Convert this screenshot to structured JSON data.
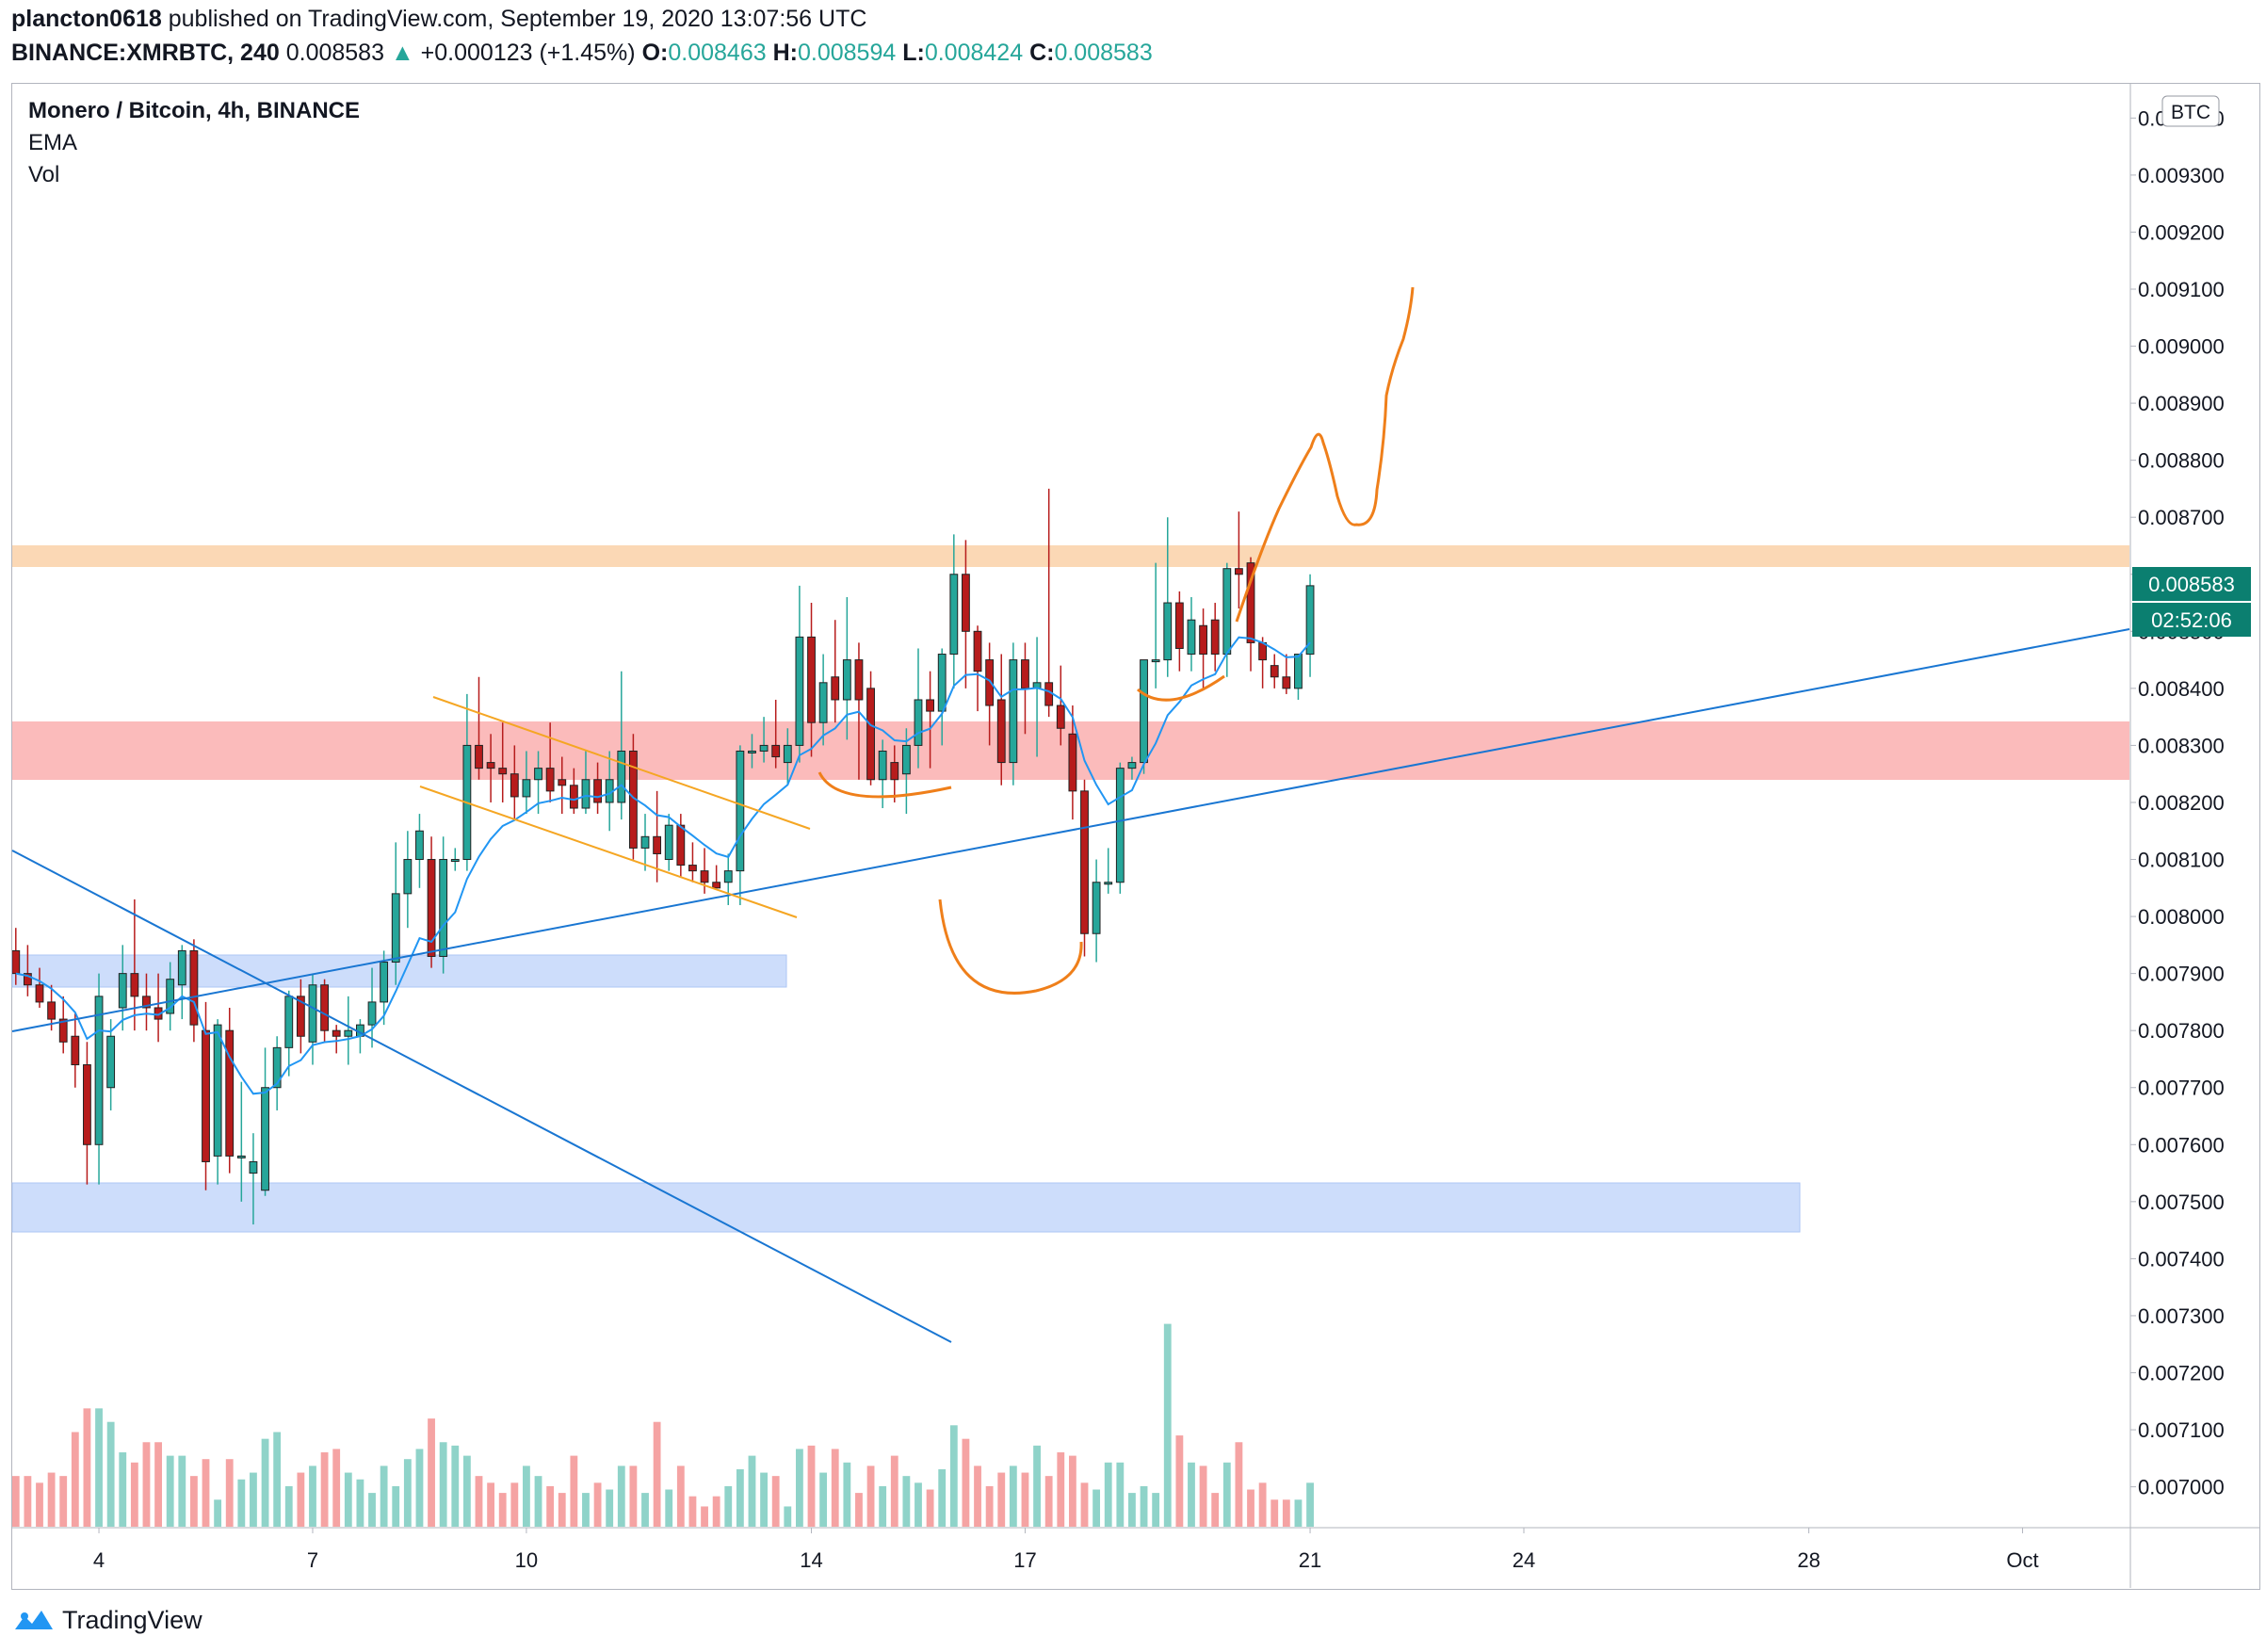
{
  "header": {
    "author": "plancton0618",
    "published": "published on TradingView.com, September 19, 2020 13:07:56 UTC",
    "symbol": "BINANCE:XMRBTC, 240",
    "last": "0.008583",
    "arrow": "▲",
    "change": "+0.000123 (+1.45%)",
    "o_label": "O:",
    "o": "0.008463",
    "h_label": "H:",
    "h": "0.008594",
    "l_label": "L:",
    "l": "0.008424",
    "c_label": "C:",
    "c": "0.008583"
  },
  "legend": {
    "title": "Monero / Bitcoin, 4h, BINANCE",
    "ema": "EMA",
    "vol": "Vol"
  },
  "currency_badge": "BTC",
  "price_badge": "0.008583",
  "countdown_badge": "02:52:06",
  "footer": {
    "brand": "TradingView"
  },
  "colors": {
    "up": "#26a69a",
    "down": "#b71c1c",
    "ema": "#2196f3",
    "trend": "#1976d2",
    "drawing": "#ef7f1a",
    "resistance": "#f9cb9c",
    "supply": "#fbb4b4",
    "support": "#c5d8fb"
  },
  "chart_data": {
    "type": "candlestick",
    "title": "Monero / Bitcoin, 4h, BINANCE",
    "y_axis": {
      "min": 0.00693,
      "max": 0.00946,
      "ticks": [
        "0.007000",
        "0.007100",
        "0.007200",
        "0.007300",
        "0.007400",
        "0.007500",
        "0.007600",
        "0.007700",
        "0.007800",
        "0.007900",
        "0.008000",
        "0.008100",
        "0.008200",
        "0.008300",
        "0.008400",
        "0.008500",
        "0.008600",
        "0.008700",
        "0.008800",
        "0.008900",
        "0.009000",
        "0.009100",
        "0.009200",
        "0.009300",
        "0.009400"
      ]
    },
    "x_axis": {
      "ticks": [
        {
          "label": "4",
          "index": 7
        },
        {
          "label": "7",
          "index": 25
        },
        {
          "label": "10",
          "index": 43
        },
        {
          "label": "14",
          "index": 67
        },
        {
          "label": "17",
          "index": 85
        },
        {
          "label": "21",
          "index": 109
        },
        {
          "label": "24",
          "index": 127
        },
        {
          "label": "28",
          "index": 151
        },
        {
          "label": "Oct",
          "index": 169
        }
      ],
      "domain": [
        -0.3,
        178
      ]
    },
    "candles": [
      [
        0.00794,
        0.00798,
        0.00788,
        0.0079
      ],
      [
        0.0079,
        0.00795,
        0.00786,
        0.00788
      ],
      [
        0.00788,
        0.00791,
        0.00784,
        0.00785
      ],
      [
        0.00785,
        0.00788,
        0.0078,
        0.00782
      ],
      [
        0.00782,
        0.00786,
        0.00776,
        0.00778
      ],
      [
        0.00779,
        0.00783,
        0.0077,
        0.00774
      ],
      [
        0.00774,
        0.00778,
        0.00753,
        0.0076
      ],
      [
        0.0076,
        0.0079,
        0.00753,
        0.00786
      ],
      [
        0.0077,
        0.00782,
        0.00766,
        0.00779
      ],
      [
        0.00784,
        0.00795,
        0.0078,
        0.0079
      ],
      [
        0.0079,
        0.00803,
        0.0078,
        0.00786
      ],
      [
        0.00786,
        0.0079,
        0.0078,
        0.00784
      ],
      [
        0.00784,
        0.0079,
        0.00778,
        0.00782
      ],
      [
        0.00783,
        0.00792,
        0.0078,
        0.00789
      ],
      [
        0.00788,
        0.00795,
        0.00782,
        0.00794
      ],
      [
        0.00794,
        0.00796,
        0.00778,
        0.00781
      ],
      [
        0.0078,
        0.00785,
        0.00752,
        0.00757
      ],
      [
        0.00758,
        0.00782,
        0.00753,
        0.00781
      ],
      [
        0.0078,
        0.00784,
        0.00755,
        0.00758
      ],
      [
        0.00758,
        0.00771,
        0.0075,
        0.00758
      ],
      [
        0.00755,
        0.00762,
        0.00746,
        0.00757
      ],
      [
        0.00752,
        0.00777,
        0.00751,
        0.0077
      ],
      [
        0.0077,
        0.00779,
        0.00766,
        0.00777
      ],
      [
        0.00777,
        0.00787,
        0.00772,
        0.00786
      ],
      [
        0.00786,
        0.00789,
        0.00776,
        0.00779
      ],
      [
        0.00778,
        0.0079,
        0.00774,
        0.00788
      ],
      [
        0.00788,
        0.00789,
        0.00778,
        0.0078
      ],
      [
        0.0078,
        0.00781,
        0.00776,
        0.00779
      ],
      [
        0.00779,
        0.00786,
        0.00774,
        0.0078
      ],
      [
        0.00779,
        0.00782,
        0.00776,
        0.00781
      ],
      [
        0.00781,
        0.00791,
        0.00777,
        0.00785
      ],
      [
        0.00785,
        0.00794,
        0.00781,
        0.00792
      ],
      [
        0.00792,
        0.00813,
        0.00788,
        0.00804
      ],
      [
        0.00804,
        0.00815,
        0.00798,
        0.0081
      ],
      [
        0.0081,
        0.00818,
        0.00805,
        0.00815
      ],
      [
        0.0081,
        0.00814,
        0.00791,
        0.00793
      ],
      [
        0.00793,
        0.00814,
        0.0079,
        0.0081
      ],
      [
        0.0081,
        0.00812,
        0.00808,
        0.0081
      ],
      [
        0.0081,
        0.00839,
        0.00808,
        0.0083
      ],
      [
        0.0083,
        0.00842,
        0.00824,
        0.00826
      ],
      [
        0.00827,
        0.00832,
        0.0082,
        0.00826
      ],
      [
        0.00826,
        0.00834,
        0.0082,
        0.00825
      ],
      [
        0.00825,
        0.0083,
        0.00817,
        0.00821
      ],
      [
        0.00821,
        0.00829,
        0.00818,
        0.00824
      ],
      [
        0.00824,
        0.00829,
        0.00818,
        0.00826
      ],
      [
        0.00826,
        0.00834,
        0.0082,
        0.00822
      ],
      [
        0.00824,
        0.00828,
        0.00818,
        0.00823
      ],
      [
        0.00823,
        0.00826,
        0.00818,
        0.00819
      ],
      [
        0.00819,
        0.00829,
        0.00818,
        0.00824
      ],
      [
        0.00824,
        0.00827,
        0.00818,
        0.0082
      ],
      [
        0.0082,
        0.00829,
        0.00815,
        0.00824
      ],
      [
        0.0082,
        0.00843,
        0.00817,
        0.00829
      ],
      [
        0.00829,
        0.00832,
        0.0081,
        0.00812
      ],
      [
        0.00812,
        0.00818,
        0.00808,
        0.00814
      ],
      [
        0.00814,
        0.00822,
        0.00806,
        0.00811
      ],
      [
        0.0081,
        0.00818,
        0.00808,
        0.00816
      ],
      [
        0.00816,
        0.00818,
        0.00807,
        0.00809
      ],
      [
        0.00809,
        0.00813,
        0.00806,
        0.00808
      ],
      [
        0.00808,
        0.00812,
        0.00804,
        0.00806
      ],
      [
        0.00806,
        0.00809,
        0.00805,
        0.00805
      ],
      [
        0.00806,
        0.00811,
        0.00802,
        0.00808
      ],
      [
        0.00808,
        0.0083,
        0.00802,
        0.00829
      ],
      [
        0.00829,
        0.00832,
        0.00826,
        0.00829
      ],
      [
        0.00829,
        0.00835,
        0.00827,
        0.0083
      ],
      [
        0.0083,
        0.00838,
        0.00826,
        0.00828
      ],
      [
        0.00827,
        0.00833,
        0.00823,
        0.0083
      ],
      [
        0.0083,
        0.00858,
        0.00827,
        0.00849
      ],
      [
        0.00849,
        0.00855,
        0.00828,
        0.00834
      ],
      [
        0.00834,
        0.00846,
        0.0083,
        0.00841
      ],
      [
        0.00842,
        0.00852,
        0.00834,
        0.00838
      ],
      [
        0.00838,
        0.00856,
        0.00831,
        0.00845
      ],
      [
        0.00845,
        0.00848,
        0.00824,
        0.00838
      ],
      [
        0.0084,
        0.00843,
        0.00823,
        0.00824
      ],
      [
        0.00824,
        0.00831,
        0.00819,
        0.00829
      ],
      [
        0.00827,
        0.0083,
        0.0082,
        0.00824
      ],
      [
        0.00825,
        0.00833,
        0.00818,
        0.0083
      ],
      [
        0.0083,
        0.00847,
        0.00826,
        0.00838
      ],
      [
        0.00838,
        0.00843,
        0.00826,
        0.00836
      ],
      [
        0.00836,
        0.00847,
        0.0083,
        0.00846
      ],
      [
        0.00846,
        0.00867,
        0.0084,
        0.0086
      ],
      [
        0.0086,
        0.00866,
        0.0084,
        0.0085
      ],
      [
        0.0085,
        0.00851,
        0.00836,
        0.00843
      ],
      [
        0.00845,
        0.00848,
        0.0083,
        0.00837
      ],
      [
        0.00838,
        0.00846,
        0.00823,
        0.00827
      ],
      [
        0.00827,
        0.00848,
        0.00823,
        0.00845
      ],
      [
        0.00845,
        0.00848,
        0.00832,
        0.0084
      ],
      [
        0.0084,
        0.00849,
        0.00828,
        0.00841
      ],
      [
        0.00841,
        0.00875,
        0.00835,
        0.00837
      ],
      [
        0.00837,
        0.00844,
        0.0083,
        0.00833
      ],
      [
        0.00832,
        0.00837,
        0.00817,
        0.00822
      ],
      [
        0.00822,
        0.00824,
        0.00793,
        0.00797
      ],
      [
        0.00797,
        0.0081,
        0.00792,
        0.00806
      ],
      [
        0.00806,
        0.00812,
        0.00804,
        0.00806
      ],
      [
        0.00806,
        0.00827,
        0.00804,
        0.00826
      ],
      [
        0.00826,
        0.00828,
        0.00824,
        0.00827
      ],
      [
        0.00827,
        0.00844,
        0.00825,
        0.00845
      ],
      [
        0.00845,
        0.00862,
        0.0084,
        0.00845
      ],
      [
        0.00845,
        0.0087,
        0.00842,
        0.00855
      ],
      [
        0.00855,
        0.00857,
        0.00843,
        0.00847
      ],
      [
        0.00846,
        0.00856,
        0.00843,
        0.00852
      ],
      [
        0.00851,
        0.00854,
        0.0084,
        0.00846
      ],
      [
        0.00852,
        0.00855,
        0.00843,
        0.00846
      ],
      [
        0.00846,
        0.00862,
        0.00842,
        0.00861
      ],
      [
        0.00861,
        0.00871,
        0.00854,
        0.0086
      ],
      [
        0.00862,
        0.00863,
        0.00843,
        0.00848
      ],
      [
        0.00848,
        0.00849,
        0.0084,
        0.00845
      ],
      [
        0.00844,
        0.00846,
        0.0084,
        0.00842
      ],
      [
        0.00842,
        0.00846,
        0.00839,
        0.0084
      ],
      [
        0.0084,
        0.00845,
        0.00838,
        0.00846
      ],
      [
        0.00846,
        0.0086,
        0.00842,
        0.00858
      ]
    ],
    "volume_scale": {
      "max": 1000
    },
    "volume": [
      150,
      150,
      130,
      160,
      150,
      280,
      350,
      350,
      310,
      220,
      190,
      250,
      250,
      210,
      210,
      150,
      200,
      80,
      200,
      140,
      160,
      260,
      280,
      120,
      160,
      180,
      220,
      230,
      160,
      140,
      100,
      180,
      120,
      200,
      230,
      320,
      250,
      240,
      210,
      150,
      130,
      100,
      130,
      180,
      150,
      120,
      100,
      210,
      100,
      130,
      110,
      180,
      180,
      100,
      310,
      110,
      180,
      90,
      60,
      90,
      120,
      170,
      210,
      160,
      150,
      60,
      230,
      240,
      160,
      230,
      190,
      100,
      180,
      120,
      210,
      150,
      130,
      110,
      170,
      300,
      260,
      180,
      120,
      160,
      180,
      160,
      240,
      150,
      220,
      210,
      130,
      110,
      190,
      190,
      100,
      120,
      100,
      600,
      270,
      190,
      180,
      100,
      190,
      250,
      110,
      130,
      80,
      80,
      80,
      130,
      110
    ]
  }
}
